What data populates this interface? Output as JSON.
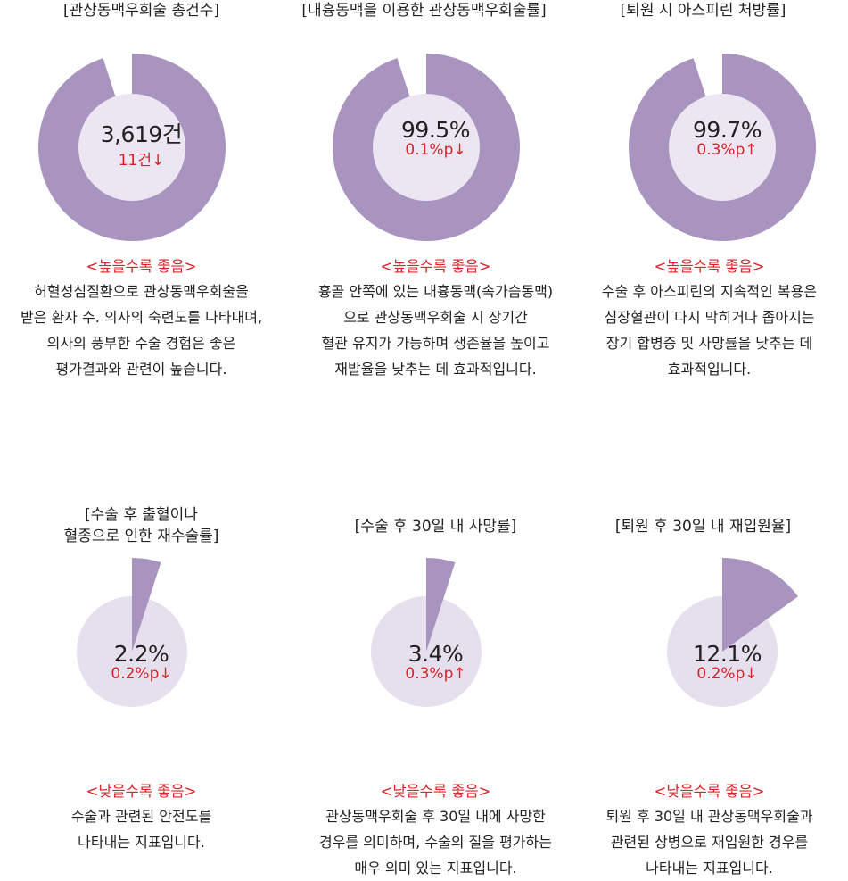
{
  "colors": {
    "fill": "#a994bf",
    "inner": "#ebe6f2",
    "track": "#e6e0ee",
    "accent": "#d8232a"
  },
  "chart_data": [
    {
      "type": "pie",
      "title": "[관상동맥우회술 총건수]",
      "value_label": "3,619건",
      "change_label": "11건↓",
      "fill_fraction": 0.95,
      "preference": "<높을수록 좋음>",
      "description": [
        "허혈성심질환으로 관상동맥우회술을",
        "받은 환자 수. 의사의 숙련도를 나타내며,",
        "의사의 풍부한 수술 경험은 좋은",
        "평가결과와 관련이 높습니다."
      ]
    },
    {
      "type": "pie",
      "title": "[내흉동맥을 이용한 관상동맥우회술률]",
      "value": 99.5,
      "value_label": "99.5%",
      "change_label": "0.1%p↓",
      "fill_fraction": 0.95,
      "preference": "<높을수록 좋음>",
      "description": [
        "흉골 안쪽에 있는 내흉동맥(속가슴동맥)",
        "으로 관상동맥우회술 시 장기간",
        "혈관 유지가 가능하며 생존율을 높이고",
        "재발율을 낮추는 데 효과적입니다."
      ]
    },
    {
      "type": "pie",
      "title": "[퇴원 시 아스피린 처방률]",
      "value": 99.7,
      "value_label": "99.7%",
      "change_label": "0.3%p↑",
      "fill_fraction": 0.95,
      "preference": "<높을수록 좋음>",
      "description": [
        "수술 후 아스피린의 지속적인 복용은",
        "심장혈관이 다시 막히거나 좁아지는",
        "장기 합병증 및 사망률을 낮추는 데",
        "효과적입니다."
      ]
    },
    {
      "type": "pie",
      "title": [
        "[수술 후 출혈이나",
        "혈종으로 인한 재수술률]"
      ],
      "value": 2.2,
      "value_label": "2.2%",
      "change_label": "0.2%p↓",
      "fill_fraction": 0.05,
      "preference": "<낮을수록 좋음>",
      "description": [
        "수술과 관련된 안전도를",
        "나타내는 지표입니다."
      ]
    },
    {
      "type": "pie",
      "title": "[수술 후 30일 내 사망률]",
      "value": 3.4,
      "value_label": "3.4%",
      "change_label": "0.3%p↑",
      "fill_fraction": 0.05,
      "preference": "<낮을수록 좋음>",
      "description": [
        "관상동맥우회술 후 30일 내에 사망한",
        "경우를 의미하며, 수술의 질을 평가하는",
        "매우 의미 있는 지표입니다."
      ]
    },
    {
      "type": "pie",
      "title": "[퇴원 후 30일 내 재입원율]",
      "value": 12.1,
      "value_label": "12.1%",
      "change_label": "0.2%p↓",
      "fill_fraction": 0.15,
      "preference": "<낮을수록 좋음>",
      "description": [
        "퇴원 후 30일 내 관상동맥우회술과",
        "관련된 상병으로 재입원한 경우를",
        "나타내는 지표입니다."
      ]
    }
  ]
}
